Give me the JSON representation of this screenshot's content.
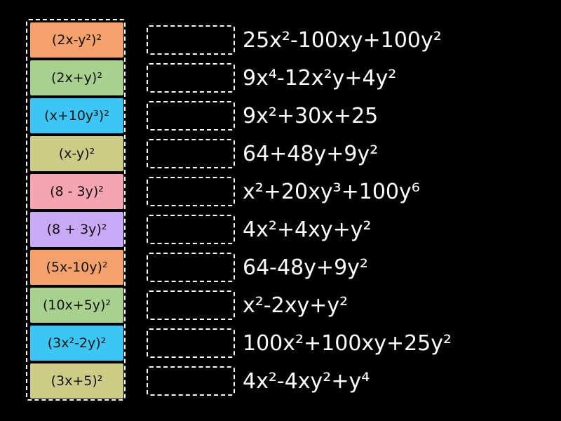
{
  "tiles": [
    "(2x-y²)²",
    "(2x+y)²",
    "(x+10y³)²",
    "(x-y)²",
    "(8 - 3y)²",
    "(8 + 3y)²",
    "(5x-10y)²",
    "(10x+5y)²",
    "(3x²-2y)²",
    "(3x+5)²"
  ],
  "targets": [
    "25x²-100xy+100y²",
    "9x⁴-12x²y+4y²",
    "9x²+30x+25",
    "64+48y+9y²",
    "x²+20xy³+100y⁶",
    "4x²+4xy+y²",
    "64-48y+9y²",
    "x²-2xy+y²",
    "100x²+100xy+25y²",
    "4x²-4xy²+y⁴"
  ]
}
